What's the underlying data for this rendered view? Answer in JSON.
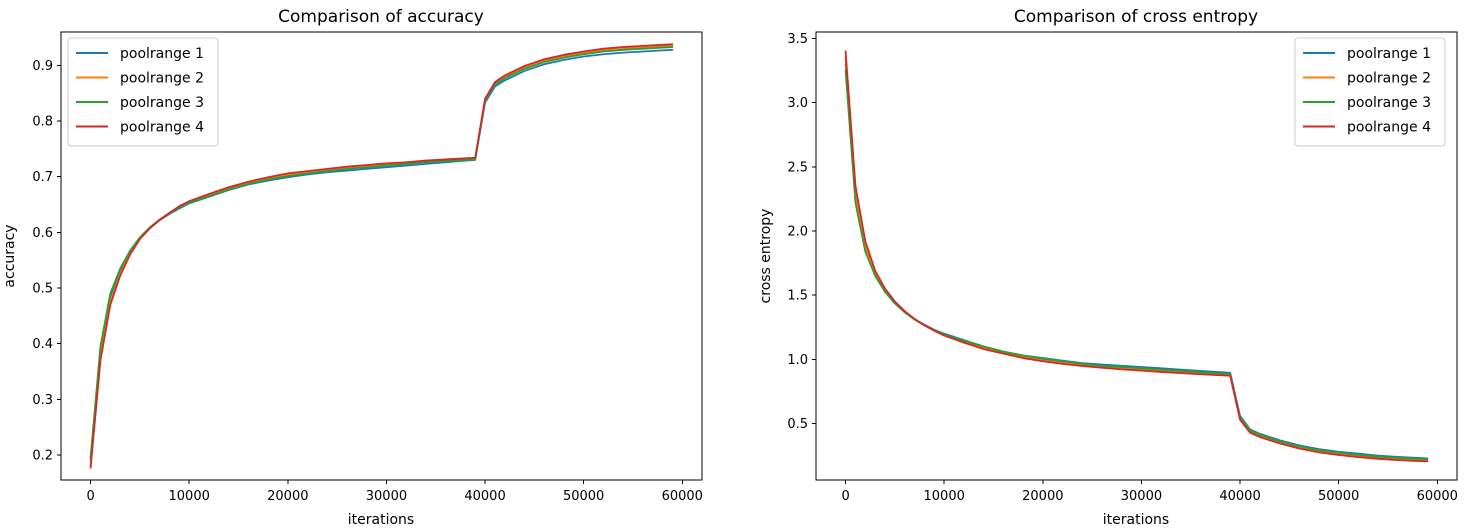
{
  "chart_data": [
    {
      "type": "line",
      "title": "Comparison of accuracy",
      "xlabel": "iterations",
      "ylabel": "accuracy",
      "xlim": [
        -3000,
        62000
      ],
      "ylim": [
        0.155,
        0.96
      ],
      "xticks": [
        0,
        10000,
        20000,
        30000,
        40000,
        50000,
        60000
      ],
      "yticks": [
        0.2,
        0.3,
        0.4,
        0.5,
        0.6,
        0.7,
        0.8,
        0.9
      ],
      "grid": false,
      "legend_position": "top-left",
      "x": [
        0,
        1000,
        2000,
        3000,
        4000,
        5000,
        6000,
        7000,
        8000,
        9000,
        10000,
        12000,
        14000,
        16000,
        18000,
        20000,
        22000,
        24000,
        26000,
        28000,
        30000,
        32000,
        34000,
        36000,
        38000,
        39000,
        40000,
        41000,
        42000,
        44000,
        46000,
        48000,
        50000,
        52000,
        54000,
        56000,
        58000,
        59000
      ],
      "series": [
        {
          "name": "poolrange 1",
          "color": "#1f77b4",
          "values": [
            0.19,
            0.39,
            0.485,
            0.53,
            0.565,
            0.59,
            0.608,
            0.622,
            0.633,
            0.643,
            0.652,
            0.664,
            0.676,
            0.686,
            0.693,
            0.699,
            0.704,
            0.708,
            0.711,
            0.714,
            0.717,
            0.72,
            0.723,
            0.726,
            0.729,
            0.73,
            0.833,
            0.862,
            0.873,
            0.89,
            0.902,
            0.91,
            0.916,
            0.92,
            0.923,
            0.925,
            0.927,
            0.928
          ]
        },
        {
          "name": "poolrange 2",
          "color": "#ff7f0e",
          "values": [
            0.18,
            0.375,
            0.475,
            0.525,
            0.563,
            0.589,
            0.608,
            0.623,
            0.635,
            0.646,
            0.655,
            0.667,
            0.679,
            0.689,
            0.696,
            0.703,
            0.707,
            0.711,
            0.715,
            0.718,
            0.721,
            0.724,
            0.727,
            0.729,
            0.731,
            0.732,
            0.838,
            0.868,
            0.879,
            0.896,
            0.908,
            0.916,
            0.922,
            0.927,
            0.93,
            0.932,
            0.934,
            0.935
          ]
        },
        {
          "name": "poolrange 3",
          "color": "#2ca02c",
          "values": [
            0.195,
            0.395,
            0.49,
            0.535,
            0.567,
            0.591,
            0.609,
            0.623,
            0.634,
            0.644,
            0.653,
            0.665,
            0.677,
            0.687,
            0.695,
            0.701,
            0.706,
            0.71,
            0.714,
            0.717,
            0.72,
            0.723,
            0.726,
            0.728,
            0.73,
            0.731,
            0.836,
            0.866,
            0.877,
            0.894,
            0.906,
            0.914,
            0.92,
            0.925,
            0.928,
            0.93,
            0.932,
            0.933
          ]
        },
        {
          "name": "poolrange 4",
          "color": "#d62728",
          "values": [
            0.177,
            0.37,
            0.47,
            0.522,
            0.56,
            0.588,
            0.607,
            0.622,
            0.635,
            0.647,
            0.656,
            0.669,
            0.681,
            0.691,
            0.699,
            0.706,
            0.71,
            0.714,
            0.718,
            0.721,
            0.724,
            0.726,
            0.729,
            0.731,
            0.733,
            0.734,
            0.84,
            0.87,
            0.882,
            0.899,
            0.911,
            0.919,
            0.925,
            0.93,
            0.933,
            0.935,
            0.937,
            0.938
          ]
        }
      ]
    },
    {
      "type": "line",
      "title": "Comparison of cross entropy",
      "xlabel": "iterations",
      "ylabel": "cross entropy",
      "xlim": [
        -3000,
        62000
      ],
      "ylim": [
        0.06,
        3.55
      ],
      "xticks": [
        0,
        10000,
        20000,
        30000,
        40000,
        50000,
        60000
      ],
      "yticks": [
        0.5,
        1.0,
        1.5,
        2.0,
        2.5,
        3.0,
        3.5
      ],
      "ytick_labels": [
        "0.5",
        "1.0",
        "1.5",
        "2.0",
        "2.5",
        "3.0",
        "3.5"
      ],
      "grid": false,
      "legend_position": "top-right",
      "x": [
        0,
        1000,
        2000,
        3000,
        4000,
        5000,
        6000,
        7000,
        8000,
        9000,
        10000,
        12000,
        14000,
        16000,
        18000,
        20000,
        22000,
        24000,
        26000,
        28000,
        30000,
        32000,
        34000,
        36000,
        38000,
        39000,
        40000,
        41000,
        42000,
        44000,
        46000,
        48000,
        50000,
        52000,
        54000,
        56000,
        58000,
        59000
      ],
      "series": [
        {
          "name": "poolrange 1",
          "color": "#1f77b4",
          "values": [
            3.3,
            2.25,
            1.85,
            1.66,
            1.53,
            1.44,
            1.37,
            1.31,
            1.27,
            1.23,
            1.2,
            1.15,
            1.1,
            1.06,
            1.03,
            1.01,
            0.99,
            0.97,
            0.96,
            0.95,
            0.94,
            0.93,
            0.92,
            0.91,
            0.9,
            0.895,
            0.56,
            0.455,
            0.42,
            0.37,
            0.33,
            0.3,
            0.28,
            0.265,
            0.25,
            0.24,
            0.232,
            0.228
          ]
        },
        {
          "name": "poolrange 2",
          "color": "#ff7f0e",
          "values": [
            3.35,
            2.3,
            1.88,
            1.67,
            1.535,
            1.44,
            1.37,
            1.31,
            1.265,
            1.225,
            1.19,
            1.14,
            1.09,
            1.05,
            1.02,
            0.995,
            0.975,
            0.955,
            0.94,
            0.93,
            0.92,
            0.91,
            0.9,
            0.89,
            0.88,
            0.875,
            0.54,
            0.44,
            0.405,
            0.355,
            0.315,
            0.285,
            0.265,
            0.248,
            0.235,
            0.225,
            0.218,
            0.215
          ]
        },
        {
          "name": "poolrange 3",
          "color": "#2ca02c",
          "values": [
            3.25,
            2.22,
            1.84,
            1.65,
            1.525,
            1.435,
            1.365,
            1.31,
            1.265,
            1.228,
            1.195,
            1.145,
            1.1,
            1.06,
            1.03,
            1.005,
            0.985,
            0.965,
            0.95,
            0.94,
            0.93,
            0.92,
            0.91,
            0.9,
            0.89,
            0.885,
            0.55,
            0.448,
            0.412,
            0.362,
            0.322,
            0.292,
            0.272,
            0.256,
            0.242,
            0.232,
            0.225,
            0.222
          ]
        },
        {
          "name": "poolrange 4",
          "color": "#d62728",
          "values": [
            3.4,
            2.35,
            1.92,
            1.69,
            1.55,
            1.45,
            1.375,
            1.315,
            1.265,
            1.222,
            1.185,
            1.13,
            1.08,
            1.045,
            1.01,
            0.985,
            0.965,
            0.948,
            0.935,
            0.922,
            0.912,
            0.902,
            0.893,
            0.884,
            0.876,
            0.872,
            0.53,
            0.43,
            0.395,
            0.345,
            0.305,
            0.275,
            0.255,
            0.238,
            0.225,
            0.215,
            0.208,
            0.205
          ]
        }
      ]
    }
  ]
}
